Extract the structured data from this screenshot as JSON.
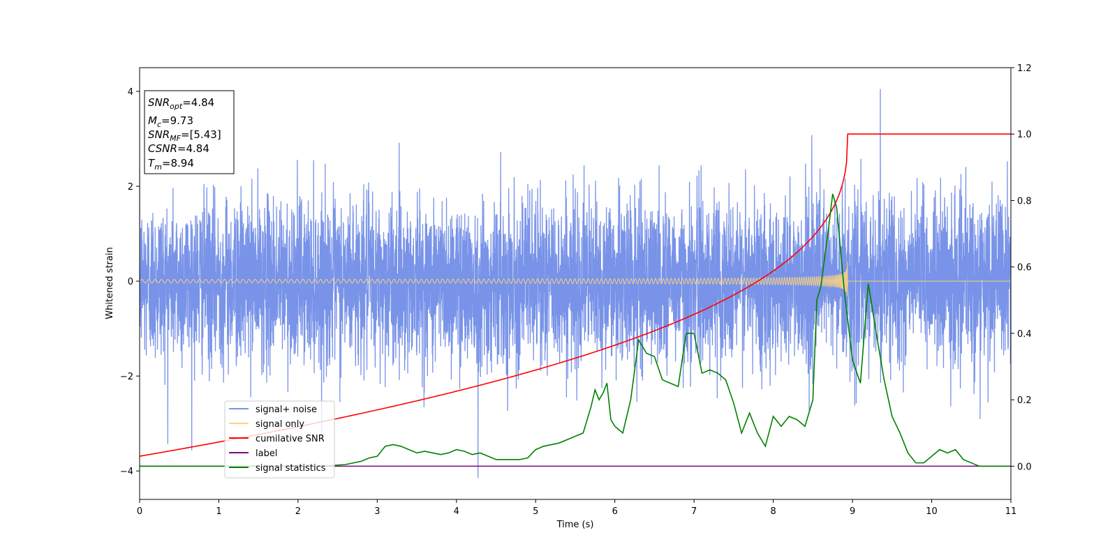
{
  "chart_data": {
    "type": "line",
    "xlabel": "Time (s)",
    "ylabel": "Whitened strain",
    "xlim": [
      0,
      11
    ],
    "ylim_left": [
      -4.6,
      4.5
    ],
    "ylim_right": [
      -0.1,
      1.2
    ],
    "x_ticks": [
      "0",
      "1",
      "2",
      "3",
      "4",
      "5",
      "6",
      "7",
      "8",
      "9",
      "10",
      "11"
    ],
    "y_left_ticks": [
      "4",
      "2",
      "0",
      "−2",
      "−4"
    ],
    "y_right_ticks": [
      "1.2",
      "1.0",
      "0.8",
      "0.6",
      "0.4",
      "0.2",
      "0.0"
    ],
    "grid": false,
    "legend_placement": "lower-left",
    "legend": [
      {
        "label": "signal+ noise",
        "color": "#7893e8"
      },
      {
        "label": "signal only",
        "color": "#ffd37f"
      },
      {
        "label": "cumilative SNR",
        "color": "#ff0000"
      },
      {
        "label": "label",
        "color": "#800080"
      },
      {
        "label": "signal statistics",
        "color": "#008000"
      }
    ],
    "info_box": {
      "snr_opt": {
        "main": "SNR",
        "sub": "opt",
        "value": "=4.84"
      },
      "mc": {
        "main": "M",
        "sub": "c",
        "value": "=9.73"
      },
      "snr_mf": {
        "main": "SNR",
        "sub": "MF",
        "value": "=[5.43]"
      },
      "csnr": {
        "main": "CSNR",
        "value": "=4.84"
      },
      "tm": {
        "main": "T",
        "sub": "m",
        "value": "=8.94"
      }
    },
    "noise": {
      "sigma": 0.85,
      "duration": 11,
      "max_peak": 4.05,
      "min_trough": -4.15
    },
    "signal_only": {
      "merger_time": 8.94,
      "peak_amplitude": 0.6,
      "color": "#ffd37f"
    },
    "cumulative_snr": {
      "merger_time": 8.94,
      "start": 0.03,
      "end": 1.0
    },
    "label_line": {
      "value": 0.0
    },
    "signal_statistics": {
      "x": [
        0,
        0.5,
        1,
        1.5,
        2,
        2.3,
        2.6,
        2.8,
        2.9,
        3.0,
        3.1,
        3.2,
        3.3,
        3.4,
        3.5,
        3.6,
        3.7,
        3.8,
        3.9,
        4.0,
        4.1,
        4.2,
        4.3,
        4.5,
        4.7,
        4.8,
        4.9,
        5.0,
        5.1,
        5.2,
        5.3,
        5.4,
        5.5,
        5.6,
        5.7,
        5.75,
        5.8,
        5.85,
        5.9,
        5.95,
        6.0,
        6.1,
        6.2,
        6.3,
        6.4,
        6.5,
        6.6,
        6.7,
        6.8,
        6.9,
        7.0,
        7.1,
        7.2,
        7.3,
        7.4,
        7.5,
        7.6,
        7.7,
        7.8,
        7.9,
        8.0,
        8.1,
        8.2,
        8.3,
        8.4,
        8.5,
        8.55,
        8.6,
        8.7,
        8.75,
        8.8,
        8.9,
        9.0,
        9.1,
        9.2,
        9.3,
        9.4,
        9.5,
        9.6,
        9.7,
        9.8,
        9.9,
        10.0,
        10.1,
        10.2,
        10.3,
        10.4,
        10.6,
        11
      ],
      "y": [
        0.0,
        0.0,
        0.0,
        0.0,
        0.0,
        0.0,
        0.005,
        0.015,
        0.025,
        0.03,
        0.06,
        0.065,
        0.06,
        0.05,
        0.04,
        0.045,
        0.04,
        0.035,
        0.04,
        0.05,
        0.045,
        0.035,
        0.04,
        0.02,
        0.02,
        0.02,
        0.025,
        0.05,
        0.06,
        0.065,
        0.07,
        0.08,
        0.09,
        0.1,
        0.18,
        0.23,
        0.2,
        0.22,
        0.25,
        0.14,
        0.12,
        0.1,
        0.2,
        0.38,
        0.34,
        0.33,
        0.26,
        0.25,
        0.24,
        0.4,
        0.4,
        0.28,
        0.29,
        0.28,
        0.26,
        0.19,
        0.1,
        0.16,
        0.1,
        0.06,
        0.15,
        0.12,
        0.15,
        0.14,
        0.12,
        0.2,
        0.5,
        0.54,
        0.72,
        0.82,
        0.78,
        0.52,
        0.32,
        0.25,
        0.55,
        0.4,
        0.26,
        0.15,
        0.1,
        0.04,
        0.01,
        0.01,
        0.03,
        0.05,
        0.04,
        0.05,
        0.02,
        0.0,
        0.0
      ]
    }
  }
}
